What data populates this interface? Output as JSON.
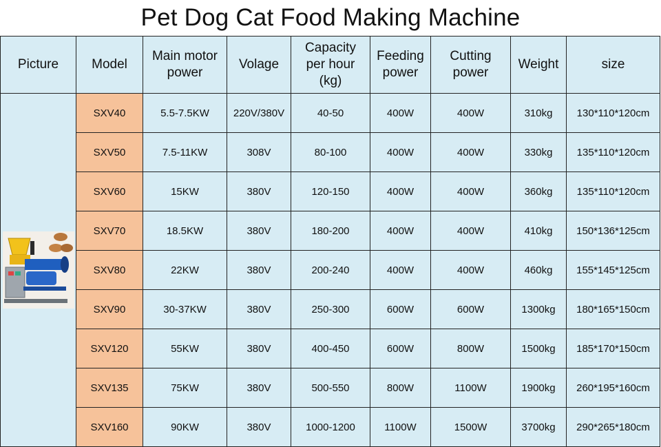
{
  "title": "Pet Dog Cat Food Making Machine",
  "headers": {
    "picture": "Picture",
    "model": "Model",
    "motor_l1": "Main motor",
    "motor_l2": "power",
    "voltage": "Volage",
    "capacity_l1": "Capacity",
    "capacity_l2": "per hour",
    "capacity_l3": "(kg)",
    "feeding_l1": "Feeding",
    "feeding_l2": "power",
    "cutting_l1": "Cutting",
    "cutting_l2": "power",
    "weight": "Weight",
    "size": "size"
  },
  "rows": [
    {
      "model": "SXV40",
      "motor": "5.5-7.5KW",
      "voltage": "220V/380V",
      "capacity": "40-50",
      "feeding": "400W",
      "cutting": "400W",
      "weight": "310kg",
      "size": "130*110*120cm"
    },
    {
      "model": "SXV50",
      "motor": "7.5-11KW",
      "voltage": "308V",
      "capacity": "80-100",
      "feeding": "400W",
      "cutting": "400W",
      "weight": "330kg",
      "size": "135*110*120cm"
    },
    {
      "model": "SXV60",
      "motor": "15KW",
      "voltage": "380V",
      "capacity": "120-150",
      "feeding": "400W",
      "cutting": "400W",
      "weight": "360kg",
      "size": "135*110*120cm"
    },
    {
      "model": "SXV70",
      "motor": "18.5KW",
      "voltage": "380V",
      "capacity": "180-200",
      "feeding": "400W",
      "cutting": "400W",
      "weight": "410kg",
      "size": "150*136*125cm"
    },
    {
      "model": "SXV80",
      "motor": "22KW",
      "voltage": "380V",
      "capacity": "200-240",
      "feeding": "400W",
      "cutting": "400W",
      "weight": "460kg",
      "size": "155*145*125cm"
    },
    {
      "model": "SXV90",
      "motor": "30-37KW",
      "voltage": "380V",
      "capacity": "250-300",
      "feeding": "600W",
      "cutting": "600W",
      "weight": "1300kg",
      "size": "180*165*150cm"
    },
    {
      "model": "SXV120",
      "motor": "55KW",
      "voltage": "380V",
      "capacity": "400-450",
      "feeding": "600W",
      "cutting": "800W",
      "weight": "1500kg",
      "size": "185*170*150cm"
    },
    {
      "model": "SXV135",
      "motor": "75KW",
      "voltage": "380V",
      "capacity": "500-550",
      "feeding": "800W",
      "cutting": "1100W",
      "weight": "1900kg",
      "size": "260*195*160cm"
    },
    {
      "model": "SXV160",
      "motor": "90KW",
      "voltage": "380V",
      "capacity": "1000-1200",
      "feeding": "1100W",
      "cutting": "1500W",
      "weight": "3700kg",
      "size": "290*265*180cm"
    }
  ]
}
